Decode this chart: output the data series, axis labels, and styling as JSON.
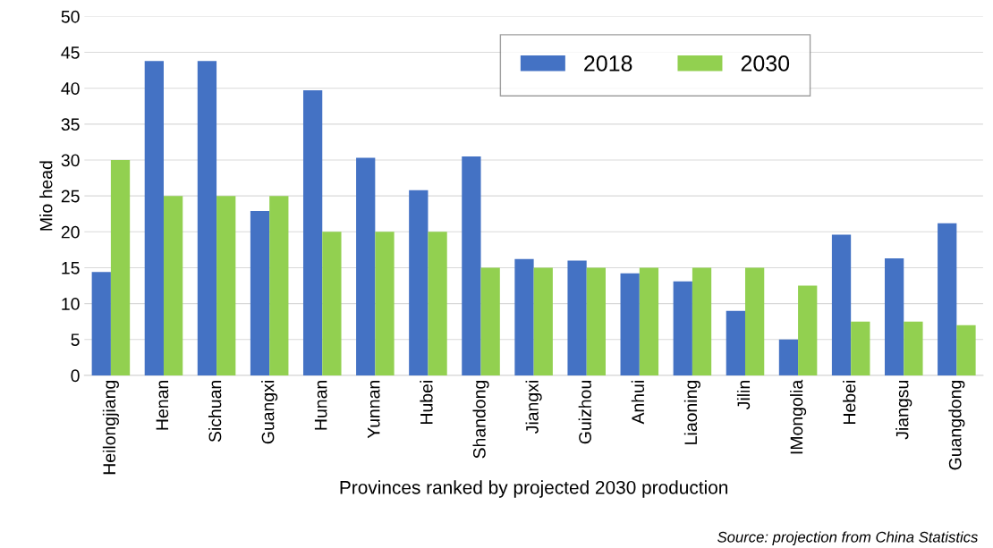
{
  "chart_data": {
    "type": "bar",
    "xlabel": "Provinces ranked by projected 2030 production",
    "ylabel": "Mio head",
    "categories": [
      "Heilongjiang",
      "Henan",
      "Sichuan",
      "Guangxi",
      "Hunan",
      "Yunnan",
      "Hubei",
      "Shandong",
      "Jiangxi",
      "Guizhou",
      "Anhui",
      "Liaoning",
      "Jilin",
      "IMongolia",
      "Hebei",
      "Jiangsu",
      "Guangdong"
    ],
    "series": [
      {
        "name": "2018",
        "color": "#4472c4",
        "values": [
          14.4,
          43.8,
          43.8,
          22.9,
          39.7,
          30.3,
          25.8,
          30.5,
          16.2,
          16,
          14.2,
          13.1,
          9,
          5,
          19.6,
          16.3,
          21.2
        ]
      },
      {
        "name": "2030",
        "color": "#92d050",
        "values": [
          30,
          25,
          25,
          25,
          20,
          20,
          20,
          15,
          15,
          15,
          15,
          15,
          15,
          12.5,
          7.5,
          7.5,
          7
        ]
      }
    ],
    "ylim": [
      0,
      50
    ],
    "yticks": [
      0,
      5,
      10,
      15,
      20,
      25,
      30,
      35,
      40,
      45,
      50
    ],
    "grid": "y",
    "legend": "top right",
    "annotations": [
      "Source: projection from China Statistics"
    ]
  }
}
